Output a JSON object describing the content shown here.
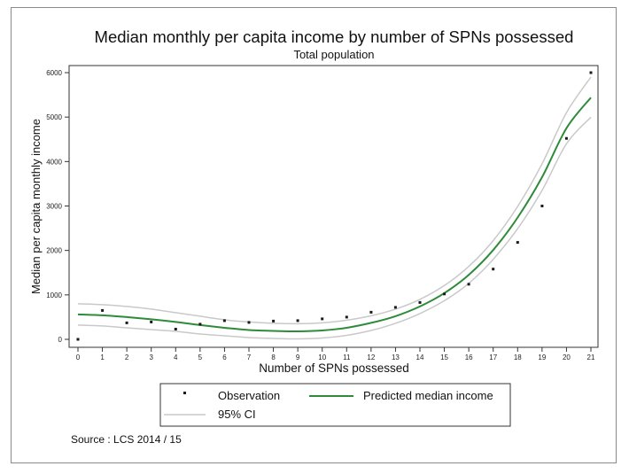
{
  "chart_data": {
    "type": "line",
    "title": "Median monthly per capita income by number of SPNs possessed",
    "subtitle": "Total population",
    "xlabel": "Number of SPNs possessed",
    "ylabel": "Median per capita monthly income",
    "xlim": [
      0,
      21
    ],
    "ylim": [
      0,
      6000
    ],
    "x_ticks": [
      0,
      1,
      2,
      3,
      4,
      5,
      6,
      7,
      8,
      9,
      10,
      11,
      12,
      13,
      14,
      15,
      16,
      17,
      18,
      19,
      20,
      21
    ],
    "y_ticks": [
      0,
      1000,
      2000,
      3000,
      4000,
      5000,
      6000
    ],
    "grid": false,
    "legend_position": "bottom",
    "series": [
      {
        "name": "Observation",
        "kind": "scatter",
        "color": "#1a1a1a",
        "x": [
          0,
          1,
          2,
          3,
          4,
          5,
          6,
          7,
          8,
          9,
          10,
          11,
          12,
          13,
          14,
          15,
          16,
          17,
          18,
          19,
          20,
          21
        ],
        "values": [
          0,
          650,
          370,
          390,
          230,
          340,
          420,
          380,
          410,
          420,
          460,
          500,
          610,
          720,
          830,
          1020,
          1240,
          1580,
          2180,
          3000,
          4520,
          6000
        ]
      },
      {
        "name": "Predicted median income",
        "kind": "line",
        "color": "#2e8b3a",
        "x": [
          0,
          1,
          2,
          3,
          4,
          5,
          6,
          7,
          8,
          9,
          10,
          11,
          12,
          13,
          14,
          15,
          16,
          17,
          18,
          19,
          20,
          21
        ],
        "values": [
          560,
          540,
          500,
          450,
          390,
          320,
          260,
          210,
          190,
          180,
          200,
          260,
          370,
          520,
          740,
          1040,
          1450,
          2010,
          2740,
          3650,
          4750,
          5440
        ]
      },
      {
        "name": "95% CI",
        "kind": "band",
        "color": "#c9c9c9",
        "x": [
          0,
          1,
          2,
          3,
          4,
          5,
          6,
          7,
          8,
          9,
          10,
          11,
          12,
          13,
          14,
          15,
          16,
          17,
          18,
          19,
          20,
          21
        ],
        "upper": [
          800,
          780,
          740,
          680,
          600,
          520,
          440,
          390,
          360,
          350,
          370,
          430,
          530,
          680,
          900,
          1210,
          1640,
          2220,
          2990,
          3950,
          5100,
          5900
        ],
        "lower": [
          320,
          300,
          260,
          220,
          180,
          120,
          80,
          40,
          20,
          10,
          30,
          90,
          200,
          360,
          580,
          870,
          1260,
          1800,
          2490,
          3350,
          4400,
          5000
        ]
      }
    ],
    "source": "Source : LCS 2014 / 15"
  },
  "colors": {
    "frame": "#8a8a8a",
    "axis": "#333333",
    "predicted": "#2e8b3a",
    "ci": "#c9c9c9",
    "observation": "#1a1a1a"
  }
}
